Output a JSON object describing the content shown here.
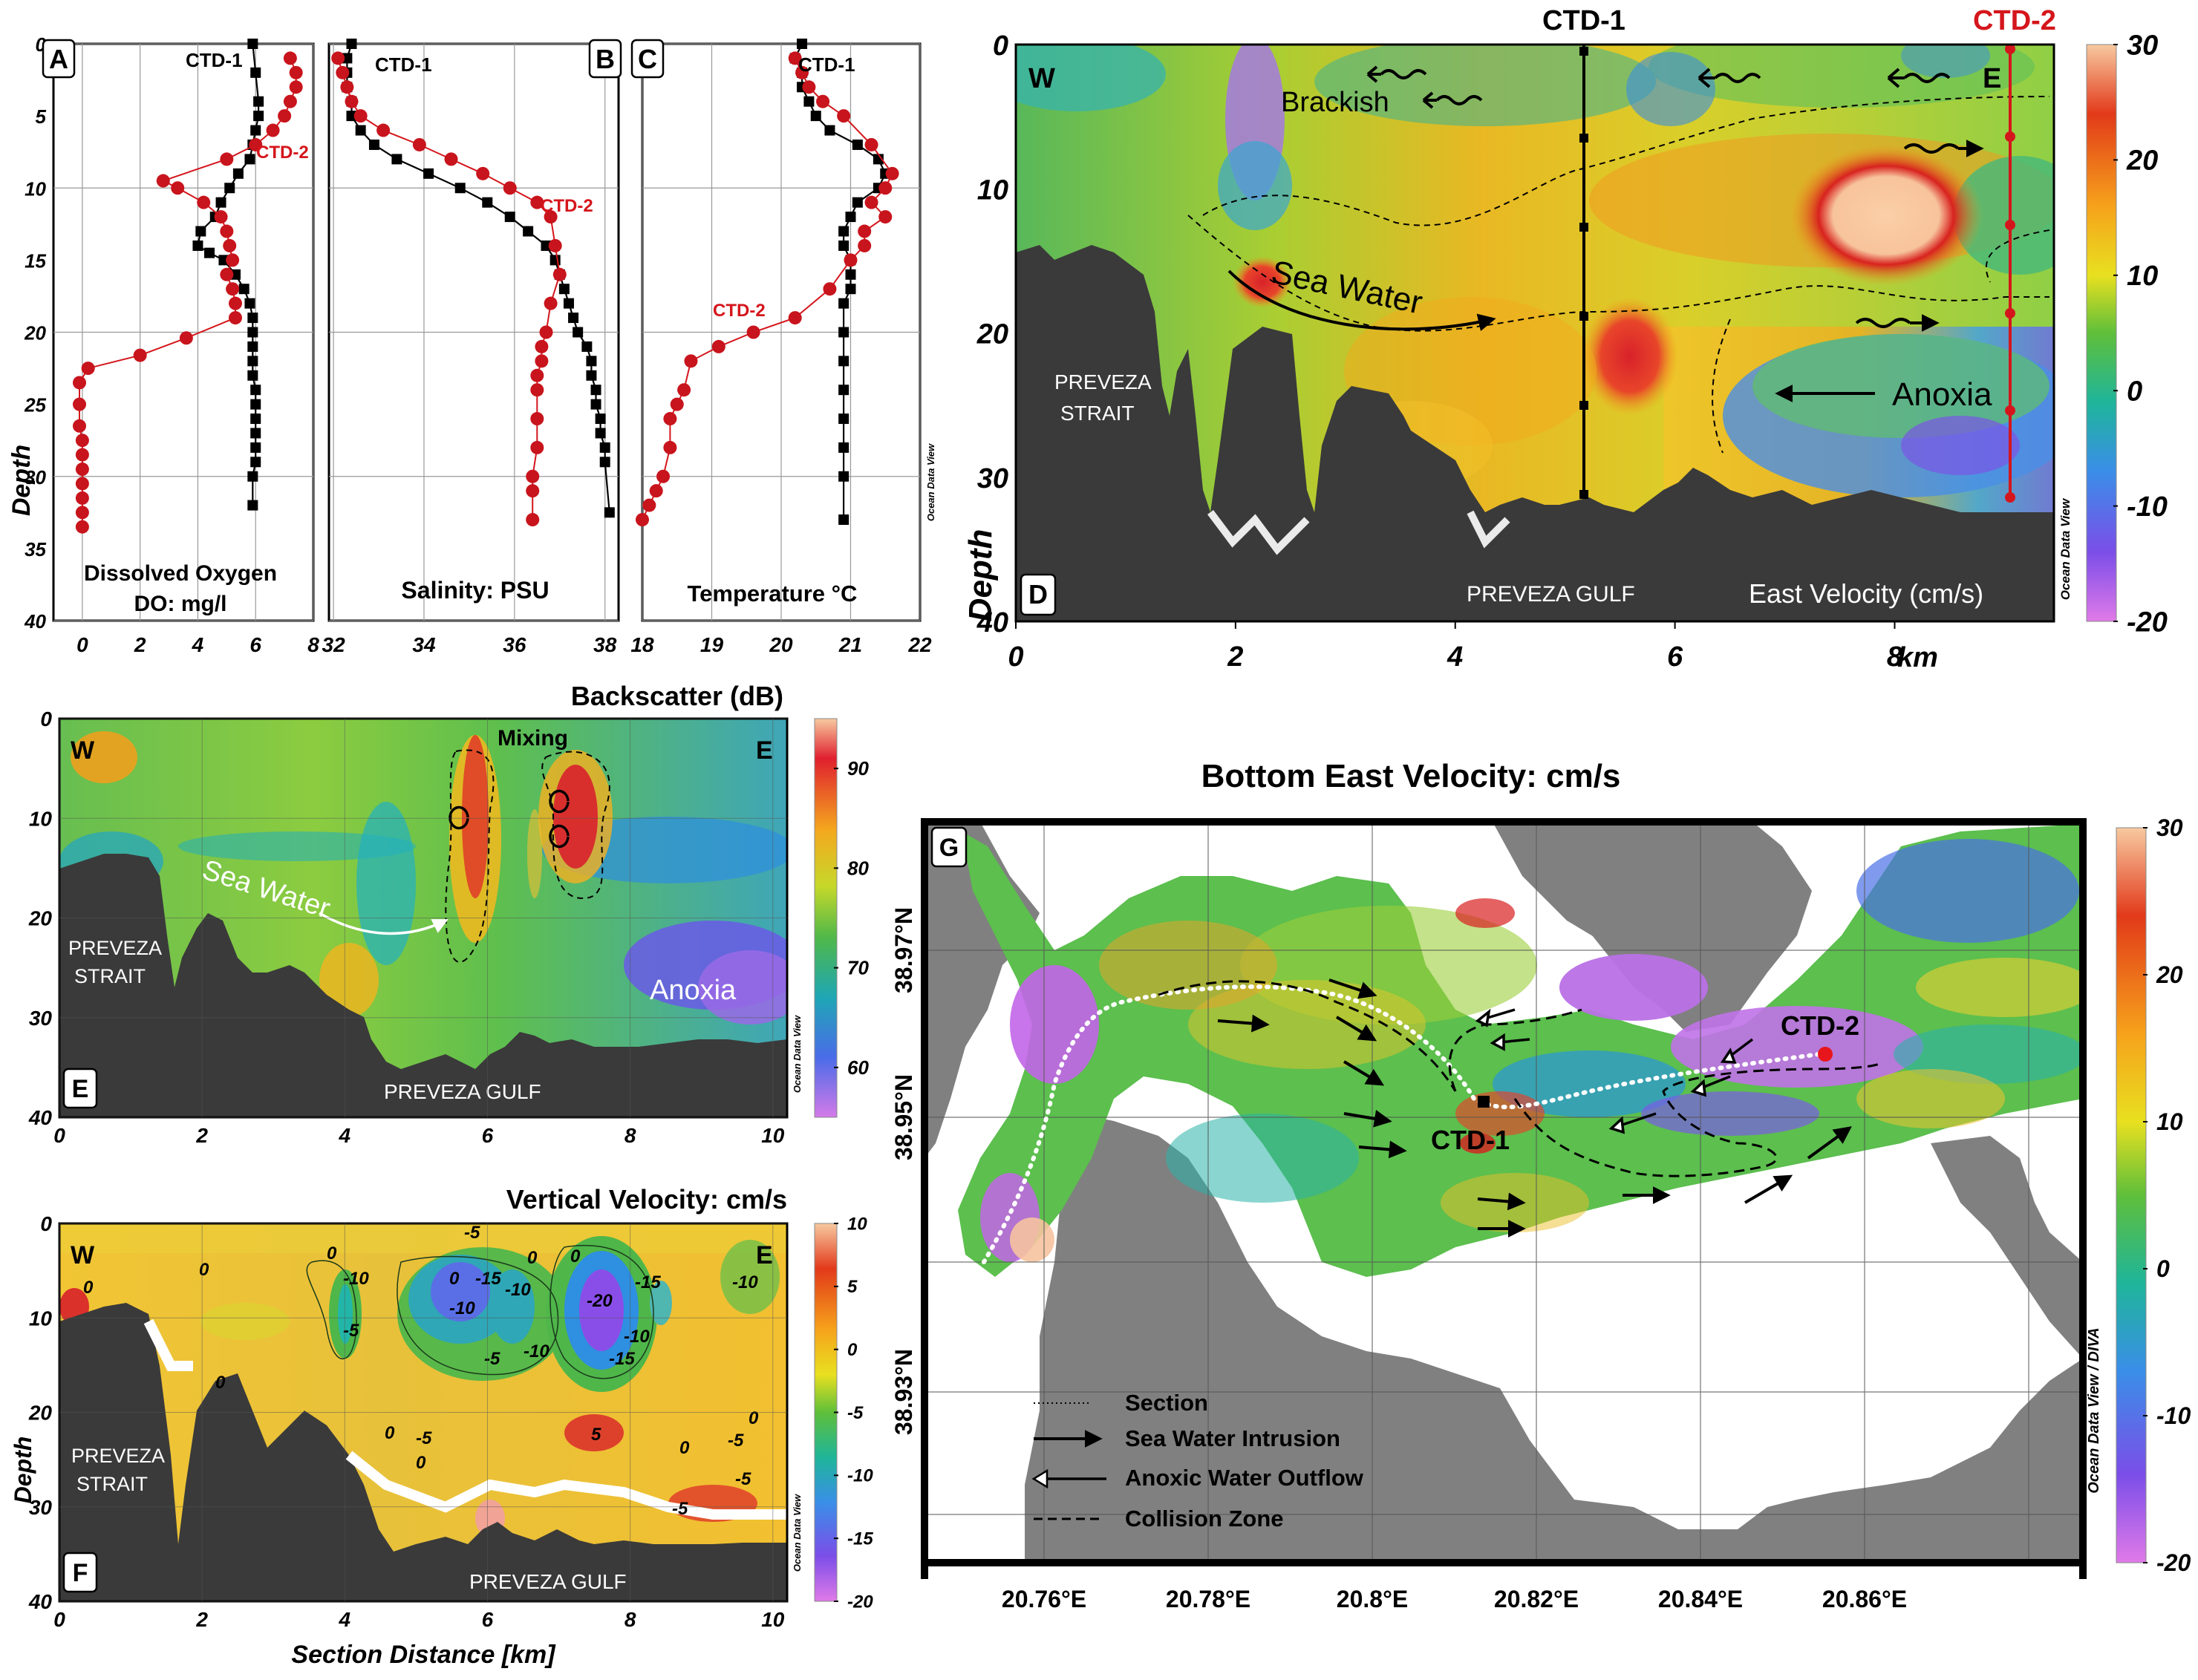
{
  "panels": {
    "A": {
      "letter": "A",
      "label_line1": "Dissolved Oxygen",
      "label_line2": "DO: mg/l",
      "ylabel": "Depth",
      "xticks": [
        "0",
        "2",
        "4",
        "6",
        "8"
      ],
      "yticks": [
        "0",
        "5",
        "10",
        "15",
        "20",
        "25",
        "30",
        "35",
        "40"
      ],
      "ctd1_label": "CTD-1",
      "ctd2_label": "CTD-2"
    },
    "B": {
      "letter": "B",
      "label": "Salinity:  PSU",
      "xticks": [
        "32",
        "34",
        "36",
        "38"
      ],
      "ctd1_label": "CTD-1",
      "ctd2_label": "CTD-2"
    },
    "C": {
      "letter": "C",
      "label": "Temperature °C",
      "xticks": [
        "18",
        "19",
        "20",
        "21",
        "22"
      ],
      "ctd1_label": "CTD-1",
      "ctd2_label": "CTD-2",
      "watermark": "Ocean Data View"
    },
    "D": {
      "letter": "D",
      "ylabel": "Depth",
      "xticks": [
        "0",
        "2",
        "4",
        "6",
        "8"
      ],
      "xunit": "km",
      "yticks": [
        "0",
        "10",
        "20",
        "30",
        "40"
      ],
      "ctd1_label": "CTD-1",
      "ctd2_label": "CTD-2",
      "w": "W",
      "e": "E",
      "brackish": "Brackish",
      "sea_water": "Sea Water",
      "anoxia": "Anoxia",
      "strait": [
        "PREVEZA",
        "STRAIT"
      ],
      "gulf": "PREVEZA GULF",
      "variable": "East Velocity (cm/s)",
      "watermark": "Ocean Data View",
      "colorbar_ticks": [
        "30",
        "20",
        "10",
        "0",
        "-10",
        "-20"
      ]
    },
    "E": {
      "letter": "E",
      "title": "Backscatter (dB)",
      "xticks": [
        "0",
        "2",
        "4",
        "6",
        "8",
        "10"
      ],
      "yticks": [
        "0",
        "10",
        "20",
        "30",
        "40"
      ],
      "w": "W",
      "e": "E",
      "mixing": "Mixing",
      "sea_water": "Sea Water",
      "anoxia": "Anoxia",
      "strait": [
        "PREVEZA",
        "STRAIT"
      ],
      "gulf": "PREVEZA GULF",
      "watermark": "Ocean Data View",
      "colorbar_ticks": [
        "90",
        "80",
        "70",
        "60"
      ]
    },
    "F": {
      "letter": "F",
      "title": "Vertical Velocity: cm/s",
      "xlabel": "Section Distance [km]",
      "ylabel": "Depth",
      "xticks": [
        "0",
        "2",
        "4",
        "6",
        "8",
        "10"
      ],
      "yticks": [
        "0",
        "10",
        "20",
        "30",
        "40"
      ],
      "w": "W",
      "e": "E",
      "strait": [
        "PREVEZA",
        "STRAIT"
      ],
      "gulf": "PREVEZA GULF",
      "watermark": "Ocean Data View",
      "colorbar_ticks": [
        "10",
        "5",
        "0",
        "-5",
        "-10",
        "-15",
        "-20"
      ],
      "contour_labels": [
        "0",
        "0",
        "-10",
        "-5",
        "-15",
        "-10",
        "-10",
        "-5",
        "0",
        "-10",
        "-20",
        "-15",
        "-10",
        "-15",
        "-5",
        "0",
        "0",
        "0",
        "0",
        "0",
        "-5",
        "-5",
        "5",
        "0",
        "0",
        "0",
        "-10",
        "-5",
        "-5"
      ]
    },
    "G": {
      "letter": "G",
      "title": "Bottom East Velocity: cm/s",
      "lon_ticks": [
        "20.76°E",
        "20.78°E",
        "20.8°E",
        "20.82°E",
        "20.84°E",
        "20.86°E"
      ],
      "lat_ticks": [
        "38.97°N",
        "38.95°N",
        "38.93°N"
      ],
      "ctd1_label": "CTD-1",
      "ctd2_label": "CTD-2",
      "legend": [
        "Section",
        "Sea Water Intrusion",
        "Anoxic Water Outflow",
        "Collision Zone"
      ],
      "watermark": "Ocean Data View / DIVA",
      "colorbar_ticks": [
        "30",
        "20",
        "10",
        "0",
        "-10",
        "-20"
      ]
    }
  },
  "chart_data": [
    {
      "type": "line",
      "panel": "A",
      "title": "",
      "xlabel": "Dissolved Oxygen DO: mg/l",
      "ylabel": "Depth",
      "xlim": [
        -1,
        8
      ],
      "ylim": [
        40,
        0
      ],
      "series": [
        {
          "name": "CTD-1",
          "x": [
            5.9,
            6.0,
            6.1,
            6.1,
            6.0,
            5.9,
            5.8,
            5.4,
            5.1,
            4.8,
            4.6,
            4.1,
            4.0,
            4.4,
            4.9,
            5.3,
            5.6,
            5.8,
            5.9,
            5.9,
            5.9,
            5.9,
            5.9,
            6.0,
            6.0,
            6.0,
            6.0,
            6.0,
            6.0,
            5.9,
            5.9
          ],
          "y": [
            0,
            2,
            4,
            5,
            6,
            7,
            8,
            9,
            10,
            11,
            12,
            13,
            14,
            14.5,
            15,
            16,
            17,
            18,
            19,
            20,
            21,
            22,
            23,
            24,
            25,
            26,
            27,
            28,
            29,
            30,
            32
          ]
        },
        {
          "name": "CTD-2",
          "x": [
            7.2,
            7.4,
            7.4,
            7.2,
            7.0,
            6.6,
            6.0,
            5.0,
            2.8,
            3.3,
            4.2,
            4.8,
            5.0,
            5.1,
            5.2,
            5.0,
            5.2,
            5.3,
            5.3,
            3.6,
            2.0,
            0.2,
            -0.1,
            -0.1,
            -0.1,
            0.0,
            0.0,
            0.0,
            0.0,
            0.0,
            0.0,
            0.0
          ],
          "y": [
            1,
            2,
            3,
            4,
            5,
            6,
            7,
            8,
            9.5,
            10,
            11,
            12,
            13,
            14,
            15,
            16,
            17,
            18,
            19,
            20.4,
            21.6,
            22.5,
            23.5,
            25,
            26.5,
            27.5,
            28.5,
            29.5,
            30.5,
            31.5,
            32.5,
            33.5
          ]
        }
      ]
    },
    {
      "type": "line",
      "panel": "B",
      "title": "",
      "xlabel": "Salinity: PSU",
      "xlim": [
        31.9,
        38.3
      ],
      "ylim": [
        40,
        0
      ],
      "series": [
        {
          "name": "CTD-1",
          "x": [
            32.4,
            32.3,
            32.3,
            32.3,
            32.4,
            32.4,
            32.6,
            32.9,
            33.4,
            34.1,
            34.8,
            35.4,
            35.9,
            36.3,
            36.7,
            36.9,
            37.0,
            37.1,
            37.2,
            37.3,
            37.4,
            37.6,
            37.7,
            37.7,
            37.8,
            37.8,
            37.9,
            37.9,
            38.0,
            38.0,
            38.1
          ],
          "y": [
            0,
            1,
            2,
            3,
            4,
            5,
            6,
            7,
            8,
            9,
            10,
            11,
            12,
            13,
            14,
            15,
            16,
            17,
            18,
            19,
            20,
            21,
            22,
            23,
            24,
            25,
            26,
            27,
            28,
            29,
            32.5
          ]
        },
        {
          "name": "CTD-2",
          "x": [
            32.1,
            32.2,
            32.3,
            32.4,
            32.6,
            33.1,
            33.9,
            34.6,
            35.3,
            35.9,
            36.5,
            36.8,
            36.9,
            37.0,
            36.8,
            36.7,
            36.6,
            36.6,
            36.5,
            36.5,
            36.5,
            36.5,
            36.4,
            36.4,
            36.4
          ],
          "y": [
            1,
            2,
            3,
            4,
            5,
            6,
            7,
            8,
            9,
            10,
            11,
            12,
            14,
            16,
            18,
            20,
            21,
            22,
            23,
            24,
            26,
            28,
            30,
            31,
            33
          ]
        }
      ]
    },
    {
      "type": "line",
      "panel": "C",
      "title": "",
      "xlabel": "Temperature °C",
      "xlim": [
        18,
        22
      ],
      "ylim": [
        40,
        0
      ],
      "series": [
        {
          "name": "CTD-1",
          "x": [
            20.3,
            20.2,
            20.3,
            20.3,
            20.4,
            20.5,
            20.7,
            21.1,
            21.4,
            21.5,
            21.4,
            21.1,
            21.0,
            20.9,
            20.9,
            21.0,
            21.0,
            21.0,
            20.9,
            20.9,
            20.9,
            20.9,
            20.9,
            20.9,
            20.9,
            20.9
          ],
          "y": [
            0,
            1,
            2,
            3,
            4,
            5,
            6,
            7,
            8,
            9,
            10,
            11,
            12,
            13,
            14,
            15,
            16,
            17,
            18,
            20,
            22,
            24,
            26,
            28,
            30,
            33
          ]
        },
        {
          "name": "CTD-2",
          "x": [
            20.2,
            20.3,
            20.4,
            20.6,
            20.9,
            21.3,
            21.6,
            21.5,
            21.3,
            21.5,
            21.2,
            21.2,
            21.0,
            20.7,
            20.2,
            19.6,
            19.1,
            18.7,
            18.6,
            18.5,
            18.4,
            18.4,
            18.3,
            18.2,
            18.1,
            18.0
          ],
          "y": [
            1,
            2,
            3,
            4,
            5,
            7,
            9,
            10,
            11,
            12,
            13,
            14,
            15,
            17,
            19,
            20,
            21,
            22,
            24,
            25,
            26,
            28,
            30,
            31,
            32,
            33
          ]
        }
      ]
    }
  ]
}
